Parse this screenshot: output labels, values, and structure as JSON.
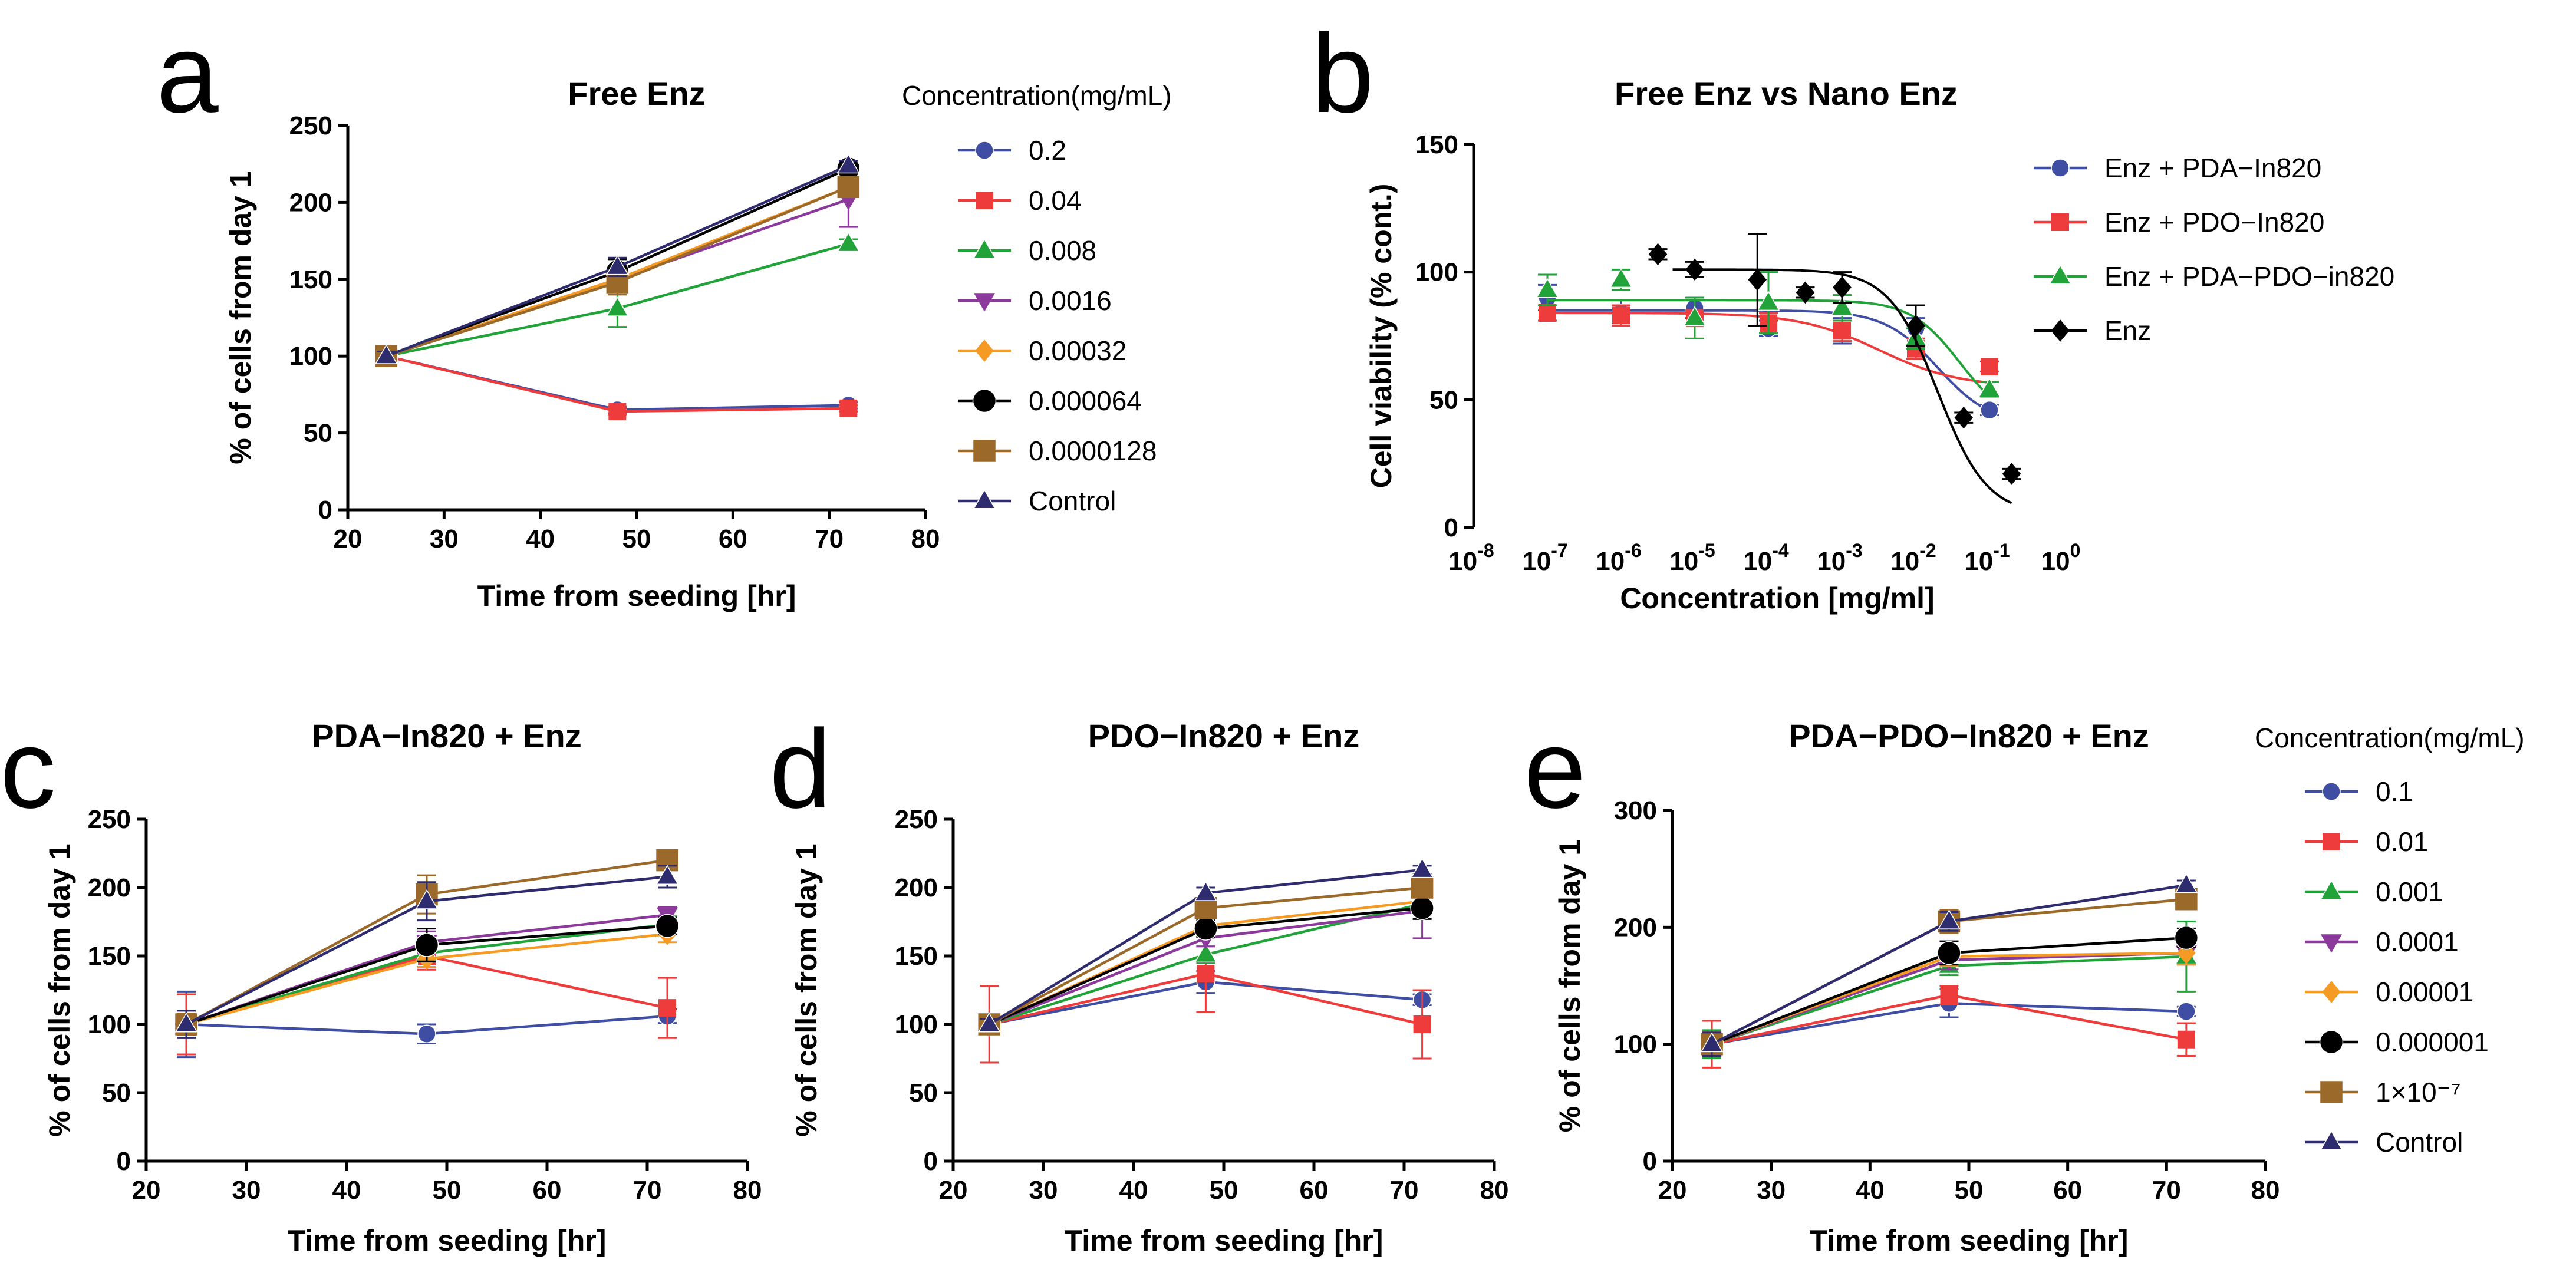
{
  "chart_data": [
    {
      "id": "a",
      "type": "line",
      "panel_label": "a",
      "title": "Free Enz",
      "xlabel": "Time from seeding [hr]",
      "ylabel": "% of cells from day 1",
      "xlim": [
        20,
        80
      ],
      "ylim": [
        0,
        250
      ],
      "xticks": [
        "20",
        "30",
        "40",
        "50",
        "60",
        "70",
        "80"
      ],
      "yticks": [
        "0",
        "50",
        "100",
        "150",
        "200",
        "250"
      ],
      "legend_title": "Concentration(mg/mL)",
      "x": [
        24,
        48,
        72
      ],
      "series": [
        {
          "name": "0.2",
          "color": "#3f4ea3",
          "marker": "circle",
          "values": [
            100,
            65,
            68
          ],
          "err": [
            3,
            2,
            2
          ]
        },
        {
          "name": "0.04",
          "color": "#ee3b3b",
          "marker": "square",
          "values": [
            100,
            64,
            66
          ],
          "err": [
            3,
            2,
            2
          ]
        },
        {
          "name": "0.008",
          "color": "#22a33a",
          "marker": "triangle",
          "values": [
            100,
            131,
            173
          ],
          "err": [
            3,
            12,
            3
          ]
        },
        {
          "name": "0.0016",
          "color": "#8b3a9c",
          "marker": "triangle-down",
          "values": [
            100,
            150,
            202
          ],
          "err": [
            3,
            8,
            18
          ]
        },
        {
          "name": "0.00032",
          "color": "#f59a23",
          "marker": "diamond",
          "values": [
            100,
            150,
            210
          ],
          "err": [
            3,
            6,
            6
          ]
        },
        {
          "name": "0.000064",
          "color": "#000000",
          "marker": "circle-big",
          "values": [
            100,
            155,
            222
          ],
          "err": [
            3,
            8,
            4
          ]
        },
        {
          "name": "0.0000128",
          "color": "#9b6a2a",
          "marker": "square-big",
          "values": [
            100,
            148,
            210
          ],
          "err": [
            3,
            8,
            6
          ]
        },
        {
          "name": "Control",
          "color": "#2e2c6e",
          "marker": "triangle",
          "values": [
            100,
            158,
            224
          ],
          "err": [
            3,
            6,
            3
          ]
        }
      ]
    },
    {
      "id": "b",
      "type": "scatter",
      "panel_label": "b",
      "title": "Free Enz vs Nano Enz",
      "xlabel": "Concentration [mg/ml]",
      "ylabel": "Cell viability (% cont.)",
      "xlim_log10": [
        -8,
        0
      ],
      "ylim": [
        0,
        150
      ],
      "xticks_exp": [
        "-8",
        "-7",
        "-6",
        "-5",
        "-4",
        "-3",
        "-2",
        "-1",
        "0"
      ],
      "yticks": [
        "0",
        "50",
        "100",
        "150"
      ],
      "series": [
        {
          "name": "Enz + PDA−In820",
          "color": "#3f4ea3",
          "marker": "circle",
          "points_log10x": [
            -7,
            -6,
            -5,
            -4,
            -3,
            -2,
            -1
          ],
          "values": [
            90,
            84,
            86,
            78,
            77,
            78,
            46
          ],
          "err": [
            5,
            5,
            4,
            3,
            5,
            4,
            2
          ],
          "fit": {
            "top": 85,
            "bottom": 40,
            "logec50": -1.7,
            "hill": 1.2
          }
        },
        {
          "name": "Enz + PDO−In820",
          "color": "#ee3b3b",
          "marker": "square",
          "points_log10x": [
            -7,
            -6,
            -5,
            -4,
            -3,
            -2,
            -1
          ],
          "values": [
            84,
            83,
            82,
            80,
            77,
            70,
            63
          ],
          "err": [
            3,
            4,
            8,
            4,
            4,
            4,
            2
          ],
          "fit": {
            "top": 84,
            "bottom": 55,
            "logec50": -2.5,
            "hill": 0.8
          }
        },
        {
          "name": "Enz + PDA−PDO−in820",
          "color": "#22a33a",
          "marker": "triangle",
          "points_log10x": [
            -7,
            -6,
            -5,
            -4,
            -3,
            -2,
            -1
          ],
          "values": [
            93,
            97,
            82,
            88,
            86,
            74,
            54
          ],
          "err": [
            6,
            4,
            8,
            12,
            5,
            4,
            3
          ],
          "fit": {
            "top": 89,
            "bottom": 40,
            "logec50": -1.4,
            "hill": 1.3
          }
        },
        {
          "name": "Enz",
          "color": "#000000",
          "marker": "diamond",
          "points_log10x": [
            -5.5,
            -5,
            -4.15,
            -3.5,
            -3,
            -2,
            -1.35,
            -0.7
          ],
          "values": [
            107,
            101,
            97,
            92,
            94,
            79,
            43,
            21
          ],
          "err": [
            2,
            3,
            18,
            2,
            6,
            8,
            2,
            2
          ],
          "fit": {
            "top": 101,
            "bottom": 5,
            "logec50": -1.7,
            "hill": 1.3,
            "from": -5.3
          }
        }
      ]
    },
    {
      "id": "c",
      "type": "line",
      "panel_label": "c",
      "title": "PDA−In820 + Enz",
      "xlabel": "Time from seeding [hr]",
      "ylabel": "% of cells from day 1",
      "xlim": [
        20,
        80
      ],
      "ylim": [
        0,
        250
      ],
      "xticks": [
        "20",
        "30",
        "40",
        "50",
        "60",
        "70",
        "80"
      ],
      "yticks": [
        "0",
        "50",
        "100",
        "150",
        "200",
        "250"
      ],
      "x": [
        24,
        48,
        72
      ],
      "series": [
        {
          "name": "0.1",
          "color": "#3f4ea3",
          "marker": "circle",
          "values": [
            100,
            93,
            106
          ],
          "err": [
            24,
            7,
            5
          ]
        },
        {
          "name": "0.01",
          "color": "#ee3b3b",
          "marker": "square",
          "values": [
            100,
            150,
            112
          ],
          "err": [
            22,
            10,
            22
          ]
        },
        {
          "name": "0.001",
          "color": "#22a33a",
          "marker": "triangle",
          "values": [
            100,
            152,
            173
          ],
          "err": [
            10,
            6,
            6
          ]
        },
        {
          "name": "0.0001",
          "color": "#8b3a9c",
          "marker": "triangle-down",
          "values": [
            100,
            160,
            180
          ],
          "err": [
            10,
            8,
            6
          ]
        },
        {
          "name": "0.00001",
          "color": "#f59a23",
          "marker": "diamond",
          "values": [
            100,
            148,
            166
          ],
          "err": [
            8,
            6,
            6
          ]
        },
        {
          "name": "0.000001",
          "color": "#000000",
          "marker": "circle-big",
          "values": [
            100,
            158,
            172
          ],
          "err": [
            8,
            12,
            6
          ]
        },
        {
          "name": "1×10⁻⁷",
          "color": "#9b6a2a",
          "marker": "square-big",
          "values": [
            100,
            195,
            220
          ],
          "err": [
            8,
            14,
            4
          ]
        },
        {
          "name": "Control",
          "color": "#2e2c6e",
          "marker": "triangle",
          "values": [
            100,
            190,
            208
          ],
          "err": [
            10,
            14,
            8
          ]
        }
      ]
    },
    {
      "id": "d",
      "type": "line",
      "panel_label": "d",
      "title": "PDO−In820 + Enz",
      "xlabel": "Time from seeding [hr]",
      "ylabel": "% of cells from day 1",
      "xlim": [
        20,
        80
      ],
      "ylim": [
        0,
        250
      ],
      "xticks": [
        "20",
        "30",
        "40",
        "50",
        "60",
        "70",
        "80"
      ],
      "yticks": [
        "0",
        "50",
        "100",
        "150",
        "200",
        "250"
      ],
      "x": [
        24,
        48,
        72
      ],
      "series": [
        {
          "name": "0.1",
          "color": "#3f4ea3",
          "marker": "circle",
          "values": [
            100,
            131,
            118
          ],
          "err": [
            4,
            8,
            4
          ]
        },
        {
          "name": "0.01",
          "color": "#ee3b3b",
          "marker": "square",
          "values": [
            100,
            137,
            100
          ],
          "err": [
            28,
            28,
            25
          ]
        },
        {
          "name": "0.001",
          "color": "#22a33a",
          "marker": "triangle",
          "values": [
            100,
            151,
            188
          ],
          "err": [
            4,
            6,
            6
          ]
        },
        {
          "name": "0.0001",
          "color": "#8b3a9c",
          "marker": "triangle-down",
          "values": [
            100,
            163,
            183
          ],
          "err": [
            4,
            6,
            20
          ]
        },
        {
          "name": "0.00001",
          "color": "#f59a23",
          "marker": "diamond",
          "values": [
            100,
            172,
            190
          ],
          "err": [
            4,
            6,
            6
          ]
        },
        {
          "name": "0.000001",
          "color": "#000000",
          "marker": "circle-big",
          "values": [
            100,
            170,
            185
          ],
          "err": [
            4,
            6,
            8
          ]
        },
        {
          "name": "1×10⁻⁷",
          "color": "#9b6a2a",
          "marker": "square-big",
          "values": [
            100,
            185,
            200
          ],
          "err": [
            4,
            6,
            6
          ]
        },
        {
          "name": "Control",
          "color": "#2e2c6e",
          "marker": "triangle",
          "values": [
            100,
            196,
            213
          ],
          "err": [
            4,
            4,
            3
          ]
        }
      ]
    },
    {
      "id": "e",
      "type": "line",
      "panel_label": "e",
      "title": "PDA−PDO−In820 + Enz",
      "xlabel": "Time from seeding [hr]",
      "ylabel": "% of cells from day 1",
      "xlim": [
        20,
        80
      ],
      "ylim": [
        0,
        300
      ],
      "xticks": [
        "20",
        "30",
        "40",
        "50",
        "60",
        "70",
        "80"
      ],
      "yticks": [
        "0",
        "100",
        "200",
        "300"
      ],
      "legend_title": "Concentration(mg/mL)",
      "x": [
        24,
        48,
        72
      ],
      "series": [
        {
          "name": "0.1",
          "color": "#3f4ea3",
          "marker": "circle",
          "values": [
            100,
            135,
            128
          ],
          "err": [
            10,
            12,
            4
          ]
        },
        {
          "name": "0.01",
          "color": "#ee3b3b",
          "marker": "square",
          "values": [
            100,
            142,
            104
          ],
          "err": [
            20,
            8,
            14
          ]
        },
        {
          "name": "0.001",
          "color": "#22a33a",
          "marker": "triangle",
          "values": [
            100,
            167,
            175
          ],
          "err": [
            12,
            8,
            30
          ]
        },
        {
          "name": "0.0001",
          "color": "#8b3a9c",
          "marker": "triangle-down",
          "values": [
            100,
            172,
            178
          ],
          "err": [
            10,
            8,
            10
          ]
        },
        {
          "name": "0.00001",
          "color": "#f59a23",
          "marker": "diamond",
          "values": [
            100,
            175,
            178
          ],
          "err": [
            10,
            8,
            10
          ]
        },
        {
          "name": "0.000001",
          "color": "#000000",
          "marker": "circle-big",
          "values": [
            100,
            178,
            191
          ],
          "err": [
            10,
            10,
            8
          ]
        },
        {
          "name": "1×10⁻⁷",
          "color": "#9b6a2a",
          "marker": "square-big",
          "values": [
            100,
            205,
            224
          ],
          "err": [
            10,
            10,
            8
          ]
        },
        {
          "name": "Control",
          "color": "#2e2c6e",
          "marker": "triangle",
          "values": [
            100,
            205,
            236
          ],
          "err": [
            10,
            8,
            4
          ]
        }
      ]
    }
  ]
}
